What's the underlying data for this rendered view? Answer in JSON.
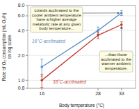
{
  "chart_data": {
    "type": "line",
    "x_label": "Body temperature (°C)",
    "y_label": "Rate of O₂ consumption (mL O₂/h)\non log scale",
    "x": [
      16,
      28,
      33
    ],
    "series": [
      {
        "name": "16°C-acclimated",
        "color": "#5b8ec4",
        "values": [
          1.45,
          4.0,
          6.5
        ],
        "errors": [
          0.35,
          0.4,
          0.45
        ]
      },
      {
        "name": "33°C-acclimated",
        "color": "#c0392b",
        "values": [
          1.0,
          3.5,
          4.7
        ],
        "errors": [
          0.18,
          0.32,
          0.38
        ]
      }
    ],
    "xlim": [
      13,
      36
    ],
    "xticks": [
      16,
      28,
      33
    ],
    "ylim": [
      0.8,
      8.0
    ],
    "yticks": [
      0.8,
      {
        "value": 1.0,
        "label": "1.0"
      },
      {
        "value": 2.0,
        "label": "2.0"
      },
      {
        "value": 4.0,
        "label": "4.0"
      },
      {
        "value": 6.0,
        "label": "6.0"
      },
      {
        "value": 8.0,
        "label": "8.0"
      }
    ],
    "log": "y",
    "grid": true,
    "marker": "circle",
    "annotations": [
      "Lizards acclimated to the\ncooler ambient temperature\nhave a higher average\nmetabolic rate at any given\nbody temperature...",
      "...than those\nacclimated to the\nwarmer ambient\ntemperature."
    ]
  }
}
